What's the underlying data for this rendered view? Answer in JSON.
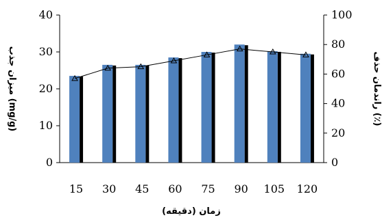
{
  "chart_data": {
    "type": "bar",
    "categories": [
      "15",
      "30",
      "45",
      "60",
      "75",
      "90",
      "105",
      "120"
    ],
    "xlabel": "زمان (دقیقه)",
    "ylabel_left": "میزان جذب (mg/g)",
    "ylabel_right": "راندمان حذف (٪)",
    "ylim_left": [
      0,
      40
    ],
    "yticks_left": [
      "0",
      "10",
      "20",
      "30",
      "40"
    ],
    "ylim_right": [
      0,
      100
    ],
    "yticks_right": [
      "0",
      "20",
      "40",
      "60",
      "80",
      "100"
    ],
    "grid": false,
    "legend": "none",
    "series": [
      {
        "type": "bar",
        "axis": "left",
        "values": [
          23.5,
          26.5,
          26.5,
          28.5,
          30,
          32,
          30.2,
          29.5
        ]
      },
      {
        "type": "line",
        "axis": "right",
        "marker": "triangle",
        "values": [
          57,
          64,
          65,
          69,
          73,
          77,
          75,
          73
        ]
      }
    ],
    "colors": {
      "bar": "#4f81bd",
      "bar_shadow": "#000000",
      "line": "#000000"
    }
  }
}
